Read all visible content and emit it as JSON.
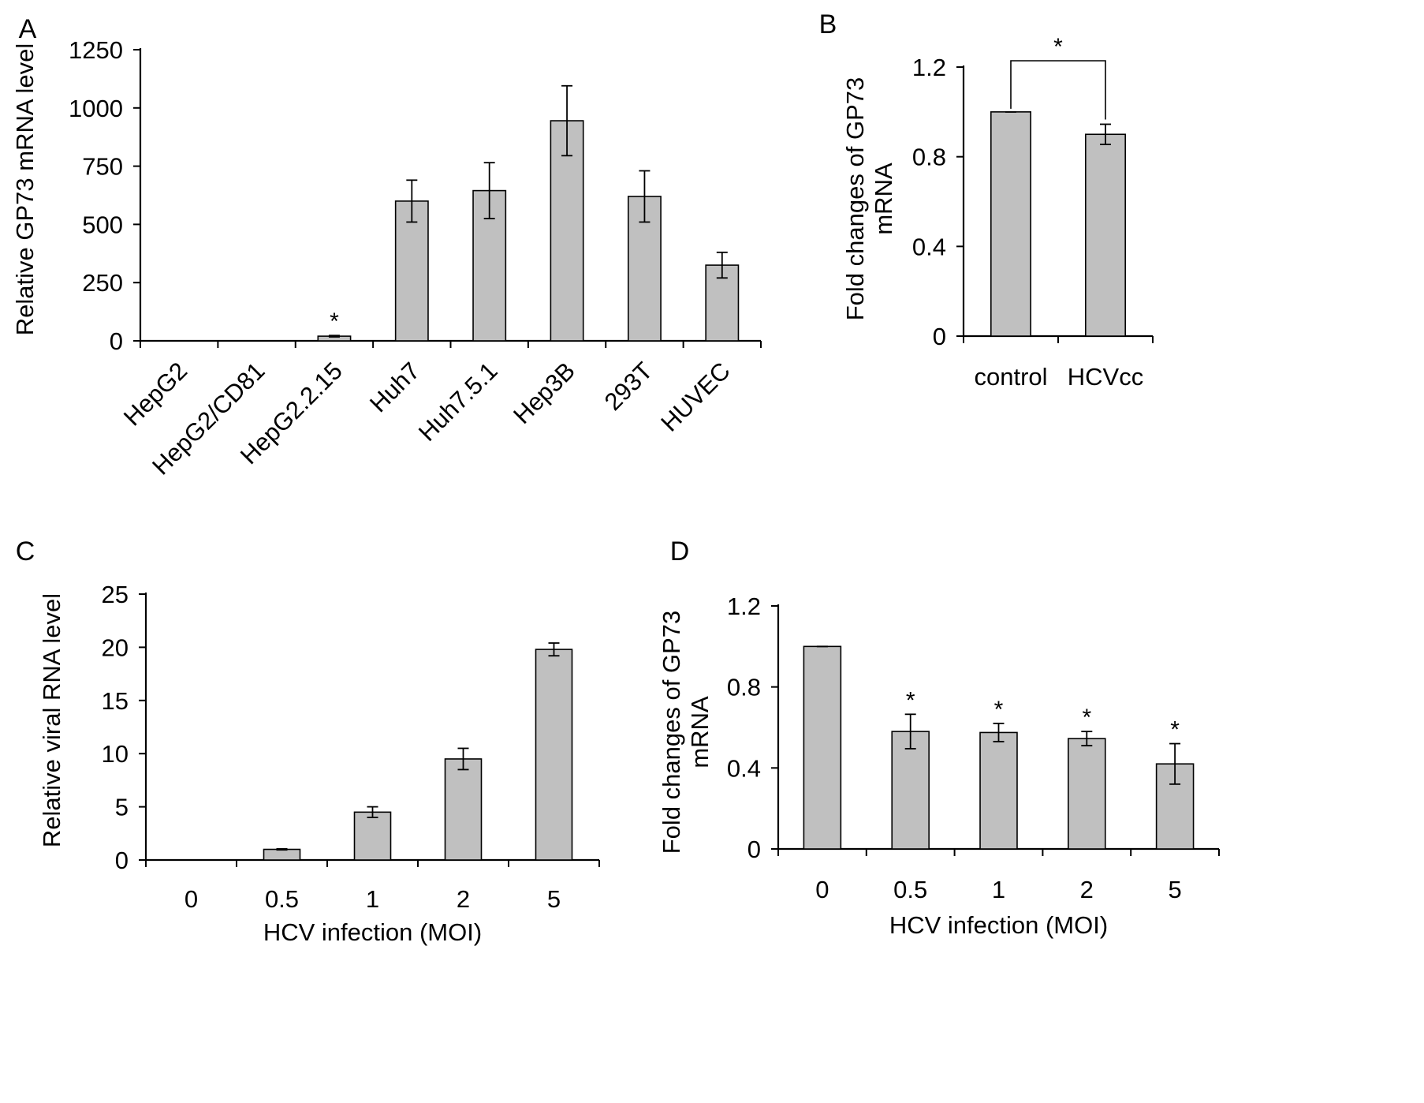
{
  "figure": {
    "panels": [
      "A",
      "B",
      "C",
      "D"
    ]
  },
  "chart_data": [
    {
      "panel": "A",
      "type": "bar",
      "ylabel": "Relative GP73 mRNA level",
      "xlabel": "",
      "ylim": [
        0,
        1250
      ],
      "yticks": [
        0,
        250,
        500,
        750,
        1000,
        1250
      ],
      "categories": [
        "HepG2",
        "HepG2/CD81",
        "HepG2.2.15",
        "Huh7",
        "Huh7.5.1",
        "Hep3B",
        "293T",
        "HUVEC"
      ],
      "values": [
        0,
        0,
        20,
        600,
        645,
        945,
        620,
        325
      ],
      "errors": [
        0,
        0,
        3,
        90,
        120,
        150,
        110,
        55
      ],
      "annotations": [
        {
          "category": "HepG2.2.15",
          "text": "*"
        }
      ]
    },
    {
      "panel": "B",
      "type": "bar",
      "ylabel": "Fold changes of GP73 mRNA",
      "xlabel": "",
      "ylim": [
        0,
        1.2
      ],
      "yticks": [
        "0",
        "0.4",
        "0.8",
        "1.2"
      ],
      "categories": [
        "control",
        "HCVcc"
      ],
      "values": [
        1.0,
        0.9
      ],
      "errors": [
        0.0,
        0.045
      ],
      "annotations": [
        {
          "between": [
            "control",
            "HCVcc"
          ],
          "text": "*"
        }
      ]
    },
    {
      "panel": "C",
      "type": "bar",
      "ylabel": "Relative viral RNA  level",
      "xlabel": "HCV infection (MOI)",
      "ylim": [
        0,
        25
      ],
      "yticks": [
        0,
        5,
        10,
        15,
        20,
        25
      ],
      "categories": [
        "0",
        "0.5",
        "1",
        "2",
        "5"
      ],
      "values": [
        0,
        1.0,
        4.5,
        9.5,
        19.8
      ],
      "errors": [
        0,
        0.05,
        0.5,
        1.0,
        0.6
      ],
      "annotations": []
    },
    {
      "panel": "D",
      "type": "bar",
      "ylabel": "Fold changes of GP73 mRNA",
      "xlabel": "HCV infection (MOI)",
      "ylim": [
        0,
        1.2
      ],
      "yticks": [
        "0",
        "0.4",
        "0.8",
        "1.2"
      ],
      "categories": [
        "0",
        "0.5",
        "1",
        "2",
        "5"
      ],
      "values": [
        1.0,
        0.58,
        0.575,
        0.545,
        0.42
      ],
      "errors": [
        0,
        0.085,
        0.045,
        0.035,
        0.1
      ],
      "annotations": [
        {
          "category": "0.5",
          "text": "*"
        },
        {
          "category": "1",
          "text": "*"
        },
        {
          "category": "2",
          "text": "*"
        },
        {
          "category": "5",
          "text": "*"
        }
      ]
    }
  ]
}
